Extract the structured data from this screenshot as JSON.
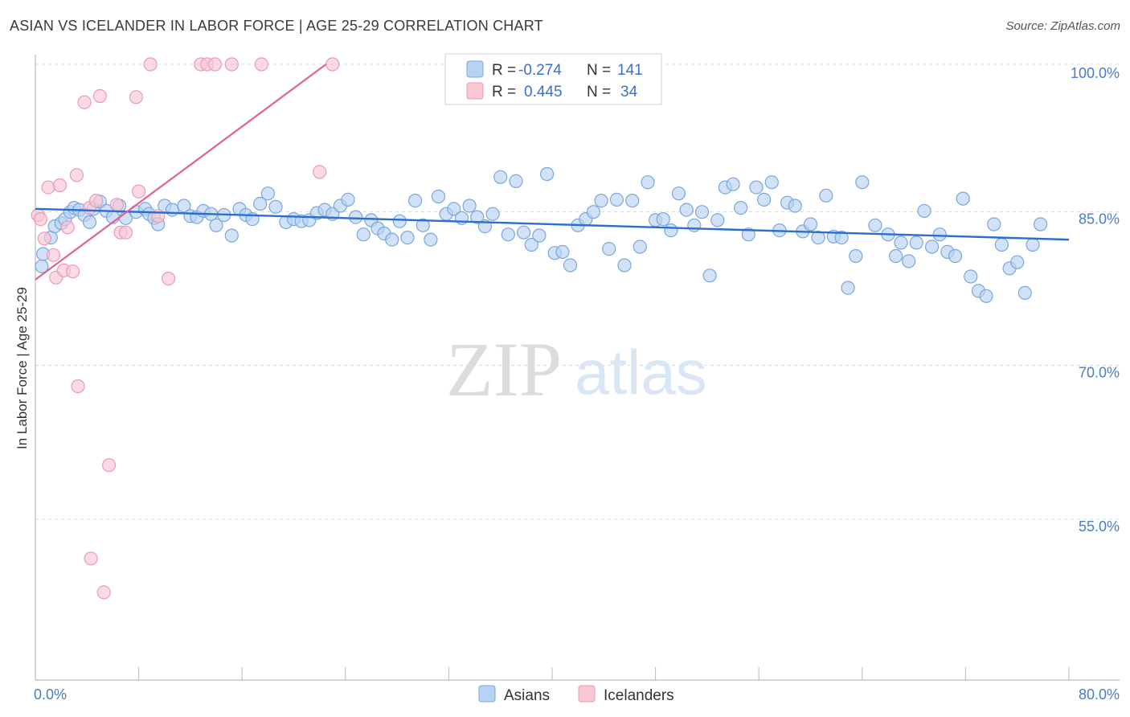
{
  "title": "ASIAN VS ICELANDER IN LABOR FORCE | AGE 25-29 CORRELATION CHART",
  "source": "Source: ZipAtlas.com",
  "colors": {
    "asian_fill": "#b8d3f2",
    "asian_stroke": "#7aa6dd",
    "asian_line": "#2a6fd0",
    "icelander_fill": "#f9c6d4",
    "icelander_stroke": "#eb9ab2",
    "icelander_line": "#e0628e",
    "tick_text": "#4a7cc9",
    "grid": "#d9d9d9"
  },
  "legend": {
    "rows": [
      {
        "r_label": "R =",
        "r_value": "-0.274",
        "n_label": "N =",
        "n_value": "141"
      },
      {
        "r_label": "R =",
        "r_value": "0.445",
        "n_label": "N =",
        "n_value": "34"
      }
    ]
  },
  "bottom_legend": [
    "Asians",
    "Icelanders"
  ],
  "watermark": {
    "zip": "ZIP",
    "atlas": "atlas"
  },
  "chart_data": {
    "type": "scatter",
    "title": "ASIAN VS ICELANDER IN LABOR FORCE | AGE 25-29 CORRELATION CHART",
    "xlabel": "",
    "ylabel": "In Labor Force | Age 25-29",
    "xlim": [
      0,
      80
    ],
    "ylim": [
      40,
      101
    ],
    "x_tick_labels": [
      "0.0%",
      "80.0%"
    ],
    "y_ticks": [
      55,
      70,
      85,
      100
    ],
    "y_tick_labels": [
      "55.0%",
      "70.0%",
      "85.0%",
      "100.0%"
    ],
    "grid": true,
    "series": [
      {
        "name": "Asians",
        "r": -0.274,
        "n": 141,
        "trend": {
          "x": [
            0,
            80
          ],
          "y": [
            85.9,
            82.9
          ]
        },
        "points": [
          [
            0.5,
            80.3
          ],
          [
            0.6,
            81.5
          ],
          [
            1.2,
            83.1
          ],
          [
            1.5,
            84.2
          ],
          [
            2.0,
            84.5
          ],
          [
            2.3,
            84.9
          ],
          [
            2.7,
            85.6
          ],
          [
            3.0,
            86.0
          ],
          [
            3.4,
            85.8
          ],
          [
            3.8,
            85.3
          ],
          [
            4.2,
            84.6
          ],
          [
            4.5,
            85.9
          ],
          [
            5.0,
            86.6
          ],
          [
            5.5,
            85.7
          ],
          [
            6.0,
            85.1
          ],
          [
            6.5,
            86.2
          ],
          [
            7.0,
            85.0
          ],
          [
            7.8,
            85.6
          ],
          [
            8.5,
            85.9
          ],
          [
            8.8,
            85.4
          ],
          [
            9.2,
            85.0
          ],
          [
            9.5,
            84.4
          ],
          [
            10.0,
            86.2
          ],
          [
            10.6,
            85.8
          ],
          [
            11.5,
            86.2
          ],
          [
            12.0,
            85.2
          ],
          [
            12.5,
            85.1
          ],
          [
            13.0,
            85.7
          ],
          [
            13.6,
            85.4
          ],
          [
            14.0,
            84.3
          ],
          [
            14.6,
            85.3
          ],
          [
            15.2,
            83.3
          ],
          [
            15.8,
            85.9
          ],
          [
            16.3,
            85.3
          ],
          [
            16.8,
            84.9
          ],
          [
            17.4,
            86.4
          ],
          [
            18.0,
            87.4
          ],
          [
            18.6,
            86.1
          ],
          [
            19.4,
            84.6
          ],
          [
            20.0,
            84.9
          ],
          [
            20.6,
            84.7
          ],
          [
            21.2,
            84.8
          ],
          [
            21.8,
            85.5
          ],
          [
            22.4,
            85.8
          ],
          [
            23.0,
            85.4
          ],
          [
            23.6,
            86.2
          ],
          [
            24.2,
            86.8
          ],
          [
            24.8,
            85.1
          ],
          [
            25.4,
            83.4
          ],
          [
            26.0,
            84.8
          ],
          [
            26.5,
            84.0
          ],
          [
            27.0,
            83.5
          ],
          [
            27.6,
            82.9
          ],
          [
            28.2,
            84.7
          ],
          [
            28.8,
            83.1
          ],
          [
            29.4,
            86.7
          ],
          [
            30.0,
            84.3
          ],
          [
            30.6,
            82.9
          ],
          [
            31.2,
            87.1
          ],
          [
            31.8,
            85.4
          ],
          [
            32.4,
            85.9
          ],
          [
            33.0,
            85.0
          ],
          [
            33.6,
            86.2
          ],
          [
            34.2,
            85.1
          ],
          [
            34.8,
            84.2
          ],
          [
            35.4,
            85.4
          ],
          [
            36.0,
            89.0
          ],
          [
            36.6,
            83.4
          ],
          [
            37.2,
            88.6
          ],
          [
            37.8,
            83.6
          ],
          [
            38.4,
            82.4
          ],
          [
            39.0,
            83.3
          ],
          [
            39.6,
            89.3
          ],
          [
            40.2,
            81.6
          ],
          [
            40.8,
            81.7
          ],
          [
            41.4,
            80.4
          ],
          [
            42.0,
            84.3
          ],
          [
            42.6,
            84.9
          ],
          [
            43.2,
            85.6
          ],
          [
            43.8,
            86.7
          ],
          [
            44.4,
            82.0
          ],
          [
            45.0,
            86.8
          ],
          [
            45.6,
            80.4
          ],
          [
            46.2,
            86.7
          ],
          [
            46.8,
            82.2
          ],
          [
            47.4,
            88.5
          ],
          [
            48.0,
            84.8
          ],
          [
            48.6,
            84.9
          ],
          [
            49.2,
            83.8
          ],
          [
            49.8,
            87.4
          ],
          [
            50.4,
            85.8
          ],
          [
            51.0,
            84.3
          ],
          [
            51.6,
            85.6
          ],
          [
            52.2,
            79.4
          ],
          [
            52.8,
            84.8
          ],
          [
            53.4,
            88.0
          ],
          [
            54.0,
            88.3
          ],
          [
            54.6,
            86.0
          ],
          [
            55.2,
            83.4
          ],
          [
            55.8,
            88.0
          ],
          [
            56.4,
            86.8
          ],
          [
            57.0,
            88.5
          ],
          [
            57.6,
            83.8
          ],
          [
            58.2,
            86.5
          ],
          [
            58.8,
            86.2
          ],
          [
            59.4,
            83.7
          ],
          [
            60.0,
            84.4
          ],
          [
            60.6,
            83.1
          ],
          [
            61.2,
            87.2
          ],
          [
            61.8,
            83.2
          ],
          [
            62.4,
            83.1
          ],
          [
            62.9,
            78.2
          ],
          [
            63.5,
            81.3
          ],
          [
            64.0,
            88.5
          ],
          [
            65.0,
            84.3
          ],
          [
            66.0,
            83.4
          ],
          [
            66.6,
            81.3
          ],
          [
            67.0,
            82.6
          ],
          [
            67.6,
            80.8
          ],
          [
            68.2,
            82.6
          ],
          [
            68.8,
            85.7
          ],
          [
            69.4,
            82.2
          ],
          [
            70.0,
            83.4
          ],
          [
            70.6,
            81.7
          ],
          [
            71.2,
            81.3
          ],
          [
            71.8,
            86.9
          ],
          [
            72.4,
            79.3
          ],
          [
            73.0,
            77.9
          ],
          [
            73.6,
            77.4
          ],
          [
            74.2,
            84.4
          ],
          [
            74.8,
            82.4
          ],
          [
            75.4,
            80.1
          ],
          [
            76.0,
            80.7
          ],
          [
            76.6,
            77.7
          ],
          [
            77.2,
            82.4
          ],
          [
            77.8,
            84.4
          ]
        ]
      },
      {
        "name": "Icelanders",
        "r": 0.445,
        "n": 34,
        "trend": {
          "x": [
            0,
            22.5
          ],
          "y": [
            79.0,
            100.0
          ]
        },
        "points": [
          [
            0.2,
            85.3
          ],
          [
            0.4,
            84.9
          ],
          [
            0.7,
            83.0
          ],
          [
            1.0,
            88.0
          ],
          [
            1.4,
            81.4
          ],
          [
            1.6,
            79.2
          ],
          [
            1.9,
            88.2
          ],
          [
            2.2,
            79.9
          ],
          [
            2.5,
            84.1
          ],
          [
            2.9,
            79.8
          ],
          [
            3.2,
            89.2
          ],
          [
            3.3,
            68.6
          ],
          [
            3.8,
            96.3
          ],
          [
            4.2,
            86.0
          ],
          [
            4.3,
            51.8
          ],
          [
            4.7,
            86.7
          ],
          [
            5.0,
            96.9
          ],
          [
            5.3,
            48.5
          ],
          [
            5.7,
            60.9
          ],
          [
            6.3,
            86.3
          ],
          [
            6.6,
            83.6
          ],
          [
            7.0,
            83.6
          ],
          [
            7.8,
            96.8
          ],
          [
            8.0,
            87.6
          ],
          [
            8.9,
            100.0
          ],
          [
            9.5,
            85.2
          ],
          [
            10.3,
            79.1
          ],
          [
            12.8,
            100.0
          ],
          [
            13.3,
            100.0
          ],
          [
            13.9,
            100.0
          ],
          [
            15.2,
            100.0
          ],
          [
            17.5,
            100.0
          ],
          [
            22.0,
            89.5
          ],
          [
            23.0,
            100.0
          ]
        ]
      }
    ]
  }
}
